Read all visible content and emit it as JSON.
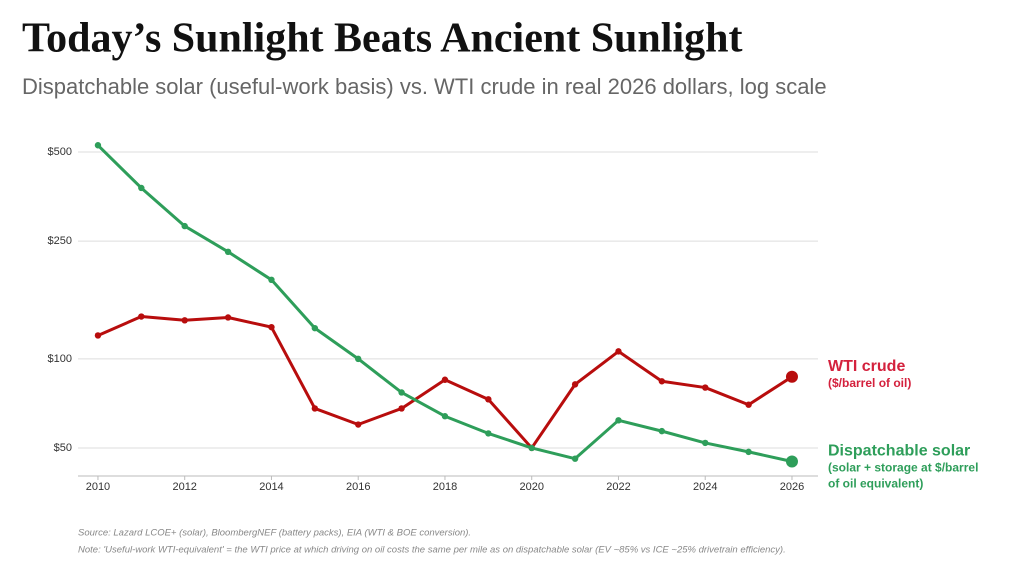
{
  "chart_data": {
    "type": "line",
    "title": "Today’s Sunlight Beats Ancient Sunlight",
    "subtitle": "Dispatchable solar (useful-work basis) vs. WTI crude in real 2026 dollars, log scale",
    "x": [
      2010,
      2011,
      2012,
      2013,
      2014,
      2015,
      2016,
      2017,
      2018,
      2019,
      2020,
      2021,
      2022,
      2023,
      2024,
      2025,
      2026
    ],
    "series": [
      {
        "name": "WTI crude",
        "color": "#b80d0d",
        "label_color": "#d4213d",
        "label_lines": [
          "($/barrel of oil)"
        ],
        "values": [
          120,
          139,
          135,
          138,
          128,
          68,
          60,
          68,
          85,
          73,
          50,
          82,
          106,
          84,
          80,
          70,
          87
        ]
      },
      {
        "name": "Dispatchable solar",
        "color": "#2e9e5a",
        "label_color": "#2e9e5a",
        "label_lines": [
          "(solar + storage at $/barrel",
          "of oil equivalent)"
        ],
        "values": [
          527,
          378,
          281,
          230,
          185,
          127,
          100,
          77,
          64,
          56,
          50,
          46,
          62,
          57,
          52,
          48.5,
          45
        ]
      }
    ],
    "xlim": [
      2009.54,
      2026.6
    ],
    "xticks": [
      2010,
      2012,
      2014,
      2016,
      2018,
      2020,
      2022,
      2024,
      2026
    ],
    "ylim": [
      40.2,
      549
    ],
    "log_y": true,
    "yticks": [
      {
        "value": 50,
        "label": "$50"
      },
      {
        "value": 100,
        "label": "$100"
      },
      {
        "value": 250,
        "label": "$250"
      },
      {
        "value": 500,
        "label": "$500"
      }
    ],
    "grid": true,
    "source": "Source: Lazard LCOE+ (solar), BloombergNEF (battery packs), EIA (WTI & BOE conversion).",
    "note": "Note: 'Useful-work WTI-equivalent' = the WTI price at which driving on oil costs the same per mile as on dispatchable solar (EV ~85% vs ICE ~25% drivetrain efficiency)."
  }
}
